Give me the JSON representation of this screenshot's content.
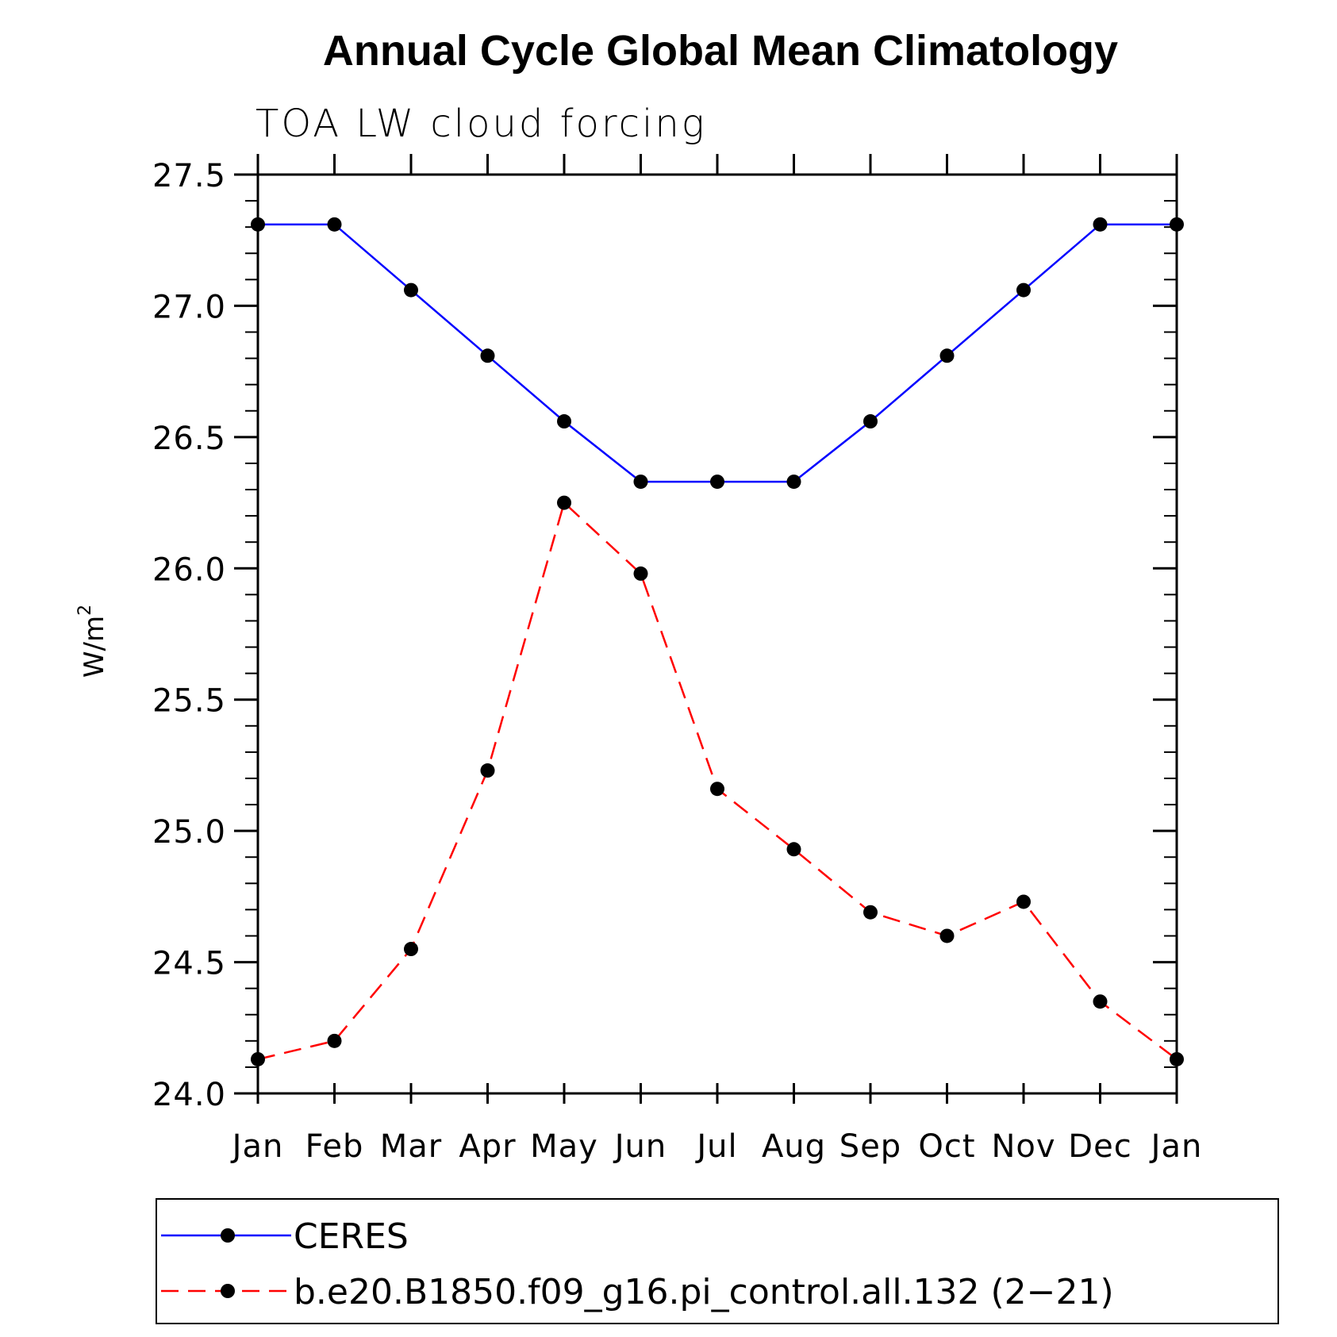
{
  "chart_data": {
    "type": "line",
    "title": "Annual Cycle Global Mean Climatology",
    "subtitle": "TOA LW cloud forcing",
    "xlabel": "",
    "ylabel": "W/m",
    "ylabel_superscript": "2",
    "categories": [
      "Jan",
      "Feb",
      "Mar",
      "Apr",
      "May",
      "Jun",
      "Jul",
      "Aug",
      "Sep",
      "Oct",
      "Nov",
      "Dec",
      "Jan"
    ],
    "ylim": [
      24.0,
      27.5
    ],
    "yticks": [
      24.0,
      24.5,
      25.0,
      25.5,
      26.0,
      26.5,
      27.0,
      27.5
    ],
    "ytick_labels": [
      "24.0",
      "24.5",
      "25.0",
      "25.5",
      "26.0",
      "26.5",
      "27.0",
      "27.5"
    ],
    "y_minor_step": 0.1,
    "grid": false,
    "legend_position": "bottom",
    "series": [
      {
        "name": "CERES",
        "color": "#0000ff",
        "line_style": "solid",
        "marker": "filled-circle",
        "values": [
          27.31,
          27.31,
          27.06,
          26.81,
          26.56,
          26.33,
          26.33,
          26.33,
          26.56,
          26.81,
          27.06,
          27.31,
          27.31
        ]
      },
      {
        "name": "b.e20.B1850.f09_g16.pi_control.all.132 (2−21)",
        "color": "#ff0000",
        "line_style": "dashed",
        "marker": "filled-circle",
        "values": [
          24.13,
          24.2,
          24.55,
          25.23,
          26.25,
          25.98,
          25.16,
          24.93,
          24.69,
          24.6,
          24.73,
          24.35,
          24.13
        ]
      }
    ]
  }
}
